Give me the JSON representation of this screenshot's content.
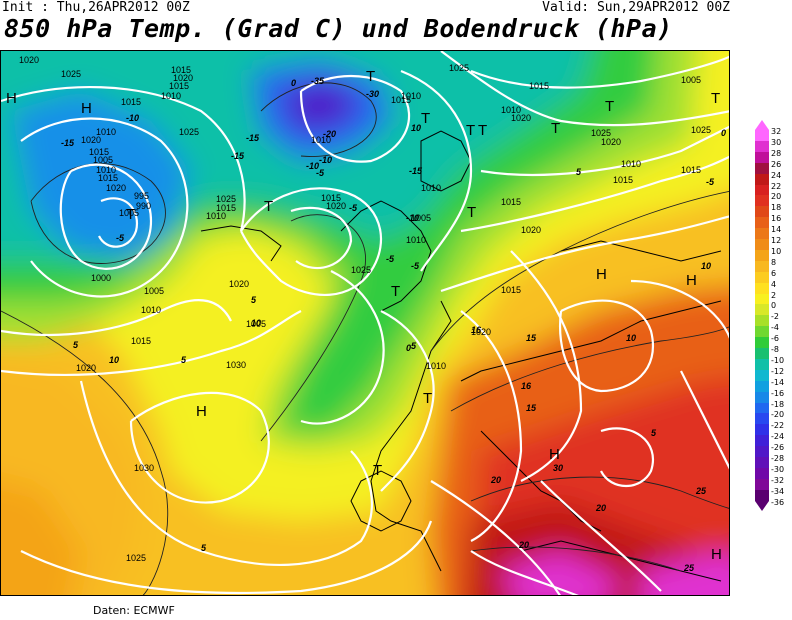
{
  "header": {
    "init": "Init : Thu,26APR2012 00Z",
    "valid": "Valid: Sun,29APR2012 00Z",
    "title": "850 hPa Temp. (Grad C) und Bodendruck (hPa)"
  },
  "footer": {
    "source": "Daten: ECMWF"
  },
  "colorbar": {
    "labels": [
      "32",
      "30",
      "28",
      "26",
      "24",
      "22",
      "20",
      "18",
      "16",
      "14",
      "12",
      "10",
      "8",
      "6",
      "4",
      "2",
      "0",
      "-2",
      "-4",
      "-6",
      "-8",
      "-10",
      "-12",
      "-14",
      "-16",
      "-18",
      "-20",
      "-22",
      "-24",
      "-26",
      "-28",
      "-30",
      "-32",
      "-34",
      "-36"
    ],
    "colors": [
      "#ff66ff",
      "#e030d0",
      "#c0109a",
      "#a01040",
      "#c01818",
      "#d82020",
      "#e03020",
      "#e04818",
      "#e86018",
      "#ec7818",
      "#f08c18",
      "#f4a418",
      "#f8b820",
      "#fccc20",
      "#ffe020",
      "#f8f020",
      "#d8e828",
      "#a8e028",
      "#70d830",
      "#30cc38",
      "#18c070",
      "#10c0a8",
      "#10b8d0",
      "#10a0e0",
      "#1888e8",
      "#2068f0",
      "#2848f0",
      "#3030e8",
      "#4020d8",
      "#5018c8",
      "#6010b8",
      "#7008a8",
      "#800898",
      "#5a0070"
    ]
  },
  "map": {
    "pressure_labels": [
      "1020",
      "1025",
      "1015",
      "1020",
      "1015",
      "1010",
      "1015",
      "1025",
      "1010",
      "1020",
      "1015",
      "1005",
      "1010",
      "1015",
      "1020",
      "1025",
      "1030",
      "1030",
      "1025",
      "1020",
      "1015",
      "1010",
      "1005",
      "1000",
      "995",
      "990",
      "1005",
      "1010",
      "1015",
      "1020",
      "1005",
      "1010",
      "1015",
      "1020",
      "1025",
      "1010",
      "1015",
      "1010",
      "1005",
      "1010",
      "1015",
      "1020",
      "1025",
      "1015",
      "1010",
      "1020",
      "1015",
      "1020",
      "1010",
      "1025",
      "1020",
      "1015",
      "1010",
      "1005",
      "1025",
      "1015"
    ],
    "temp_labels": [
      "-10",
      "-15",
      "-5",
      "-15",
      "-10",
      "-35",
      "-30",
      "-20",
      "-15",
      "-10",
      "-5",
      "-15",
      "-10",
      "-5",
      "-5",
      "0",
      "5",
      "10",
      "5",
      "5",
      "10",
      "15",
      "16",
      "16",
      "15",
      "20",
      "25",
      "25",
      "20",
      "30",
      "20",
      "10",
      "10",
      "5",
      "0",
      "-5",
      "5",
      "10",
      "5",
      "-5",
      "0",
      "5"
    ],
    "high_low_markers": [
      "H",
      "H",
      "H",
      "H",
      "H",
      "H",
      "H",
      "T",
      "T",
      "T",
      "T",
      "T",
      "T",
      "T",
      "T",
      "T",
      "T",
      "T",
      "T",
      "T"
    ]
  }
}
